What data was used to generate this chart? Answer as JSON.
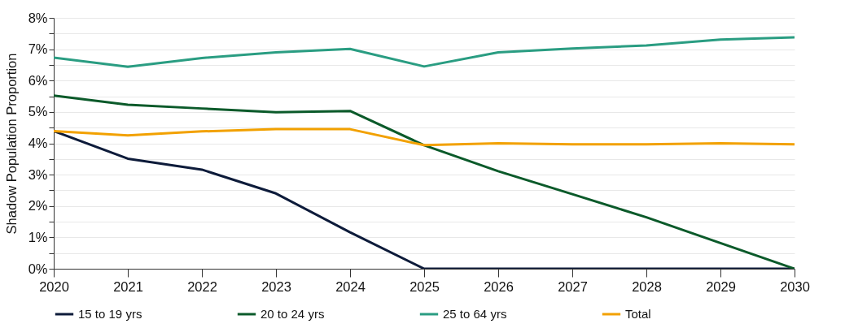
{
  "chart_data": {
    "type": "line",
    "ylabel": "Shadow Population Proportion",
    "x": [
      2020,
      2021,
      2022,
      2023,
      2024,
      2025,
      2026,
      2027,
      2028,
      2029,
      2030
    ],
    "xlim": [
      2020,
      2030
    ],
    "xticks": [
      2020,
      2021,
      2022,
      2023,
      2024,
      2025,
      2026,
      2027,
      2028,
      2029,
      2030
    ],
    "ylim": [
      0,
      8
    ],
    "yticks": [
      {
        "value": 0,
        "label": "0%"
      },
      {
        "value": 0.5,
        "label": null
      },
      {
        "value": 1,
        "label": "1%"
      },
      {
        "value": 1.5,
        "label": null
      },
      {
        "value": 2,
        "label": "2%"
      },
      {
        "value": 2.5,
        "label": null
      },
      {
        "value": 3,
        "label": "3%"
      },
      {
        "value": 3.5,
        "label": null
      },
      {
        "value": 4,
        "label": "4%"
      },
      {
        "value": 4.5,
        "label": null
      },
      {
        "value": 5,
        "label": "5%"
      },
      {
        "value": 5.5,
        "label": null
      },
      {
        "value": 6,
        "label": "6%"
      },
      {
        "value": 6.5,
        "label": null
      },
      {
        "value": 7,
        "label": "7%"
      },
      {
        "value": 7.5,
        "label": null
      },
      {
        "value": 8,
        "label": "8%"
      }
    ],
    "grid": "y",
    "legend": "bottom",
    "series": [
      {
        "name": "15 to 19 yrs",
        "color": "#0d1b3a",
        "values": [
          4.39,
          3.51,
          3.16,
          2.4,
          1.16,
          0,
          0,
          0,
          0,
          0,
          0
        ]
      },
      {
        "name": "20 to 24 yrs",
        "color": "#0b5a2a",
        "values": [
          5.52,
          5.23,
          5.11,
          4.99,
          5.03,
          3.94,
          3.11,
          2.38,
          1.64,
          0.82,
          0
        ]
      },
      {
        "name": "25 to 64 yrs",
        "color": "#2a9d82",
        "values": [
          6.73,
          6.44,
          6.72,
          6.9,
          7.01,
          6.45,
          6.9,
          7.02,
          7.12,
          7.31,
          7.38
        ]
      },
      {
        "name": "Total",
        "color": "#f2a100",
        "values": [
          4.39,
          4.25,
          4.38,
          4.45,
          4.45,
          3.94,
          4.0,
          3.97,
          3.97,
          4.0,
          3.97
        ]
      }
    ]
  }
}
